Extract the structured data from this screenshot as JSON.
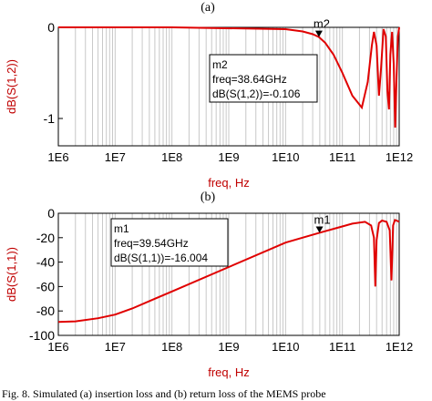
{
  "caption": "Fig. 8.   Simulated (a) insertion loss and (b) return loss of the MEMS probe",
  "colors": {
    "trace": "#e00000",
    "axis_text": "#c00000",
    "grid": "#c8c8c8",
    "frame": "#000000"
  },
  "chart_data": [
    {
      "panel_label": "(a)",
      "type": "line",
      "xscale": "log",
      "xlim": [
        1000000.0,
        1000000000000.0
      ],
      "ylim": [
        -1.3,
        0
      ],
      "grid": "vertical minor log grid on",
      "xlabel": "freq, Hz",
      "ylabel": "dB(S(1,2))",
      "xticks": [
        "1E6",
        "1E7",
        "1E8",
        "1E9",
        "1E10",
        "1E11",
        "1E12"
      ],
      "yticks": [
        {
          "v": 0,
          "label": "0"
        },
        {
          "v": -1,
          "label": "-1"
        }
      ],
      "series": [
        {
          "x": [
            1000000.0,
            100000000.0,
            10000000000.0,
            20000000000.0,
            30000000000.0,
            38640000000.0,
            50000000000.0,
            70000000000.0,
            100000000000.0,
            150000000000.0,
            220000000000.0,
            280000000000.0,
            330000000000.0,
            360000000000.0,
            400000000000.0,
            440000000000.0,
            480000000000.0,
            530000000000.0,
            580000000000.0,
            620000000000.0,
            660000000000.0,
            700000000000.0,
            750000000000.0,
            800000000000.0,
            850000000000.0,
            900000000000.0,
            950000000000.0,
            1000000000000.0
          ],
          "y": [
            0,
            0,
            -0.02,
            -0.045,
            -0.075,
            -0.106,
            -0.17,
            -0.3,
            -0.5,
            -0.75,
            -0.88,
            -0.6,
            -0.2,
            -0.05,
            -0.2,
            -0.75,
            -0.45,
            -0.02,
            -0.1,
            -0.7,
            -0.9,
            -0.3,
            -0.05,
            -0.4,
            -1.1,
            -0.55,
            -0.1,
            0
          ]
        }
      ],
      "marker": {
        "name": "m2",
        "x": 38640000000.0,
        "y": -0.106,
        "box_lines": [
          "m2",
          "freq=38.64GHz",
          "dB(S(1,2))=-0.106"
        ]
      }
    },
    {
      "panel_label": "(b)",
      "type": "line",
      "xscale": "log",
      "xlim": [
        1000000.0,
        1000000000000.0
      ],
      "ylim": [
        -100,
        0
      ],
      "grid": "vertical minor log grid on",
      "xlabel": "freq, Hz",
      "ylabel": "dB(S(1,1))",
      "xticks": [
        "1E6",
        "1E7",
        "1E8",
        "1E9",
        "1E10",
        "1E11",
        "1E12"
      ],
      "yticks": [
        {
          "v": 0,
          "label": "0"
        },
        {
          "v": -20,
          "label": "-20"
        },
        {
          "v": -40,
          "label": "-40"
        },
        {
          "v": -60,
          "label": "-60"
        },
        {
          "v": -80,
          "label": "-80"
        },
        {
          "v": -100,
          "label": "-100"
        }
      ],
      "series": [
        {
          "x": [
            1000000.0,
            2000000.0,
            5000000.0,
            10000000.0,
            20000000.0,
            50000000.0,
            100000000.0,
            1000000000.0,
            10000000000.0,
            39540000000.0,
            80000000000.0,
            150000000000.0,
            250000000000.0,
            320000000000.0,
            360000000000.0,
            380000000000.0,
            400000000000.0,
            440000000000.0,
            500000000000.0,
            600000000000.0,
            680000000000.0,
            730000000000.0,
            780000000000.0,
            840000000000.0,
            900000000000.0,
            1000000000000.0
          ],
          "y": [
            -89,
            -88.5,
            -86,
            -83,
            -78,
            -70,
            -64,
            -44,
            -24,
            -16.004,
            -12,
            -8.5,
            -7,
            -10,
            -20,
            -60,
            -22,
            -8,
            -6,
            -7,
            -14,
            -55,
            -10,
            -5.5,
            -6,
            -7
          ]
        }
      ],
      "marker": {
        "name": "m1",
        "x": 39540000000.0,
        "y": -16.004,
        "box_lines": [
          "m1",
          "freq=39.54GHz",
          "dB(S(1,1))=-16.004"
        ]
      }
    }
  ]
}
